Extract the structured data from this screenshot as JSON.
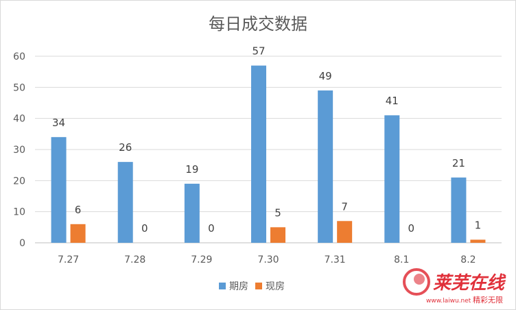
{
  "chart_data": {
    "type": "bar",
    "title": "每日成交数据",
    "categories": [
      "7.27",
      "7.28",
      "7.29",
      "7.30",
      "7.31",
      "8.1",
      "8.2"
    ],
    "series": [
      {
        "name": "期房",
        "color": "#5B9BD5",
        "values": [
          34,
          26,
          19,
          57,
          49,
          41,
          21
        ]
      },
      {
        "name": "现房",
        "color": "#ED7D31",
        "values": [
          6,
          0,
          0,
          5,
          7,
          0,
          1
        ]
      }
    ],
    "ylim": [
      0,
      60
    ],
    "yticks": [
      0,
      10,
      20,
      30,
      40,
      50,
      60
    ],
    "grid": true,
    "legend": "bottom",
    "data_labels": true
  },
  "watermark": {
    "brand": "莱芜在线",
    "url": "www.laiwu.net",
    "slogan": "精彩无限"
  }
}
